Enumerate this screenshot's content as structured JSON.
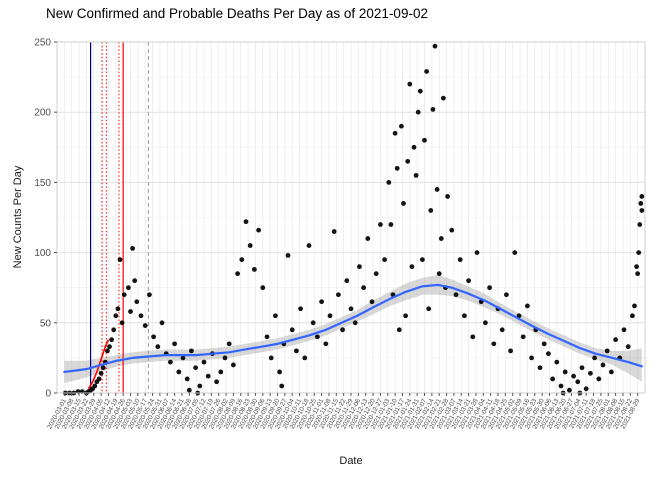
{
  "chart_data": {
    "type": "scatter",
    "title": "New Confirmed and Probable Deaths Per Day as of 2021-09-02",
    "xlabel": "Date",
    "ylabel": "New Counts Per Day",
    "ylim": [
      0,
      250
    ],
    "yticks": [
      0,
      50,
      100,
      150,
      200,
      250
    ],
    "x_domain": [
      "2020-02-23",
      "2021-09-05"
    ],
    "grid": true,
    "legend_position": "none",
    "colors": {
      "points": "#000000",
      "smooth_line": "#3366FF",
      "smooth_ribbon": "#a8a8a8",
      "early_fit": "#ff0000",
      "vline_navy": "#000080",
      "vline_red": "#ff0000",
      "vline_gray": "#9a9a9a",
      "gridline": "#e5e5e5"
    },
    "x_tick_labels": [
      "2020-03-01",
      "2020-03-08",
      "2020-03-15",
      "2020-03-22",
      "2020-03-29",
      "2020-04-05",
      "2020-04-12",
      "2020-04-19",
      "2020-04-26",
      "2020-05-03",
      "2020-05-10",
      "2020-05-17",
      "2020-05-24",
      "2020-05-31",
      "2020-06-07",
      "2020-06-14",
      "2020-06-21",
      "2020-06-28",
      "2020-07-05",
      "2020-07-12",
      "2020-07-19",
      "2020-07-26",
      "2020-08-02",
      "2020-08-09",
      "2020-08-16",
      "2020-08-23",
      "2020-08-30",
      "2020-09-06",
      "2020-09-13",
      "2020-09-20",
      "2020-09-27",
      "2020-10-04",
      "2020-10-11",
      "2020-10-18",
      "2020-10-25",
      "2020-11-01",
      "2020-11-08",
      "2020-11-15",
      "2020-11-22",
      "2020-11-29",
      "2020-12-06",
      "2020-12-13",
      "2020-12-20",
      "2020-12-27",
      "2021-01-03",
      "2021-01-10",
      "2021-01-17",
      "2021-01-24",
      "2021-01-31",
      "2021-02-07",
      "2021-02-14",
      "2021-02-21",
      "2021-02-28",
      "2021-03-07",
      "2021-03-14",
      "2021-03-21",
      "2021-03-28",
      "2021-04-04",
      "2021-04-11",
      "2021-04-18",
      "2021-04-25",
      "2021-05-02",
      "2021-05-09",
      "2021-05-16",
      "2021-05-23",
      "2021-05-30",
      "2021-06-06",
      "2021-06-13",
      "2021-06-20",
      "2021-06-27",
      "2021-07-04",
      "2021-07-11",
      "2021-07-18",
      "2021-07-25",
      "2021-08-01",
      "2021-08-08",
      "2021-08-15",
      "2021-08-22",
      "2021-08-29"
    ],
    "vlines": [
      {
        "x": "2020-03-26",
        "color": "#000080",
        "style": "solid"
      },
      {
        "x": "2020-04-06",
        "color": "#ff0000",
        "style": "dotted"
      },
      {
        "x": "2020-04-10",
        "color": "#ff0000",
        "style": "dotted"
      },
      {
        "x": "2020-04-22",
        "color": "#ff0000",
        "style": "dotted"
      },
      {
        "x": "2020-04-26",
        "color": "#ff0000",
        "style": "solid"
      },
      {
        "x": "2020-05-20",
        "color": "#9a9a9a",
        "style": "dashed"
      }
    ],
    "series": [
      {
        "name": "daily-deaths",
        "type": "scatter",
        "color": "#000000",
        "points": [
          [
            "2020-03-02",
            0
          ],
          [
            "2020-03-06",
            0
          ],
          [
            "2020-03-10",
            0
          ],
          [
            "2020-03-14",
            1
          ],
          [
            "2020-03-18",
            1
          ],
          [
            "2020-03-22",
            0
          ],
          [
            "2020-03-24",
            1
          ],
          [
            "2020-03-26",
            2
          ],
          [
            "2020-03-28",
            3
          ],
          [
            "2020-03-30",
            5
          ],
          [
            "2020-04-01",
            8
          ],
          [
            "2020-04-03",
            10
          ],
          [
            "2020-04-05",
            14
          ],
          [
            "2020-04-07",
            18
          ],
          [
            "2020-04-09",
            22
          ],
          [
            "2020-04-11",
            30
          ],
          [
            "2020-04-13",
            33
          ],
          [
            "2020-04-15",
            38
          ],
          [
            "2020-04-17",
            45
          ],
          [
            "2020-04-19",
            55
          ],
          [
            "2020-04-21",
            60
          ],
          [
            "2020-04-23",
            95
          ],
          [
            "2020-04-25",
            50
          ],
          [
            "2020-04-27",
            70
          ],
          [
            "2020-05-01",
            75
          ],
          [
            "2020-05-03",
            58
          ],
          [
            "2020-05-05",
            103
          ],
          [
            "2020-05-07",
            80
          ],
          [
            "2020-05-09",
            65
          ],
          [
            "2020-05-13",
            55
          ],
          [
            "2020-05-17",
            48
          ],
          [
            "2020-05-21",
            70
          ],
          [
            "2020-05-25",
            40
          ],
          [
            "2020-05-29",
            33
          ],
          [
            "2020-06-02",
            50
          ],
          [
            "2020-06-06",
            28
          ],
          [
            "2020-06-10",
            22
          ],
          [
            "2020-06-14",
            35
          ],
          [
            "2020-06-18",
            15
          ],
          [
            "2020-06-22",
            25
          ],
          [
            "2020-06-26",
            10
          ],
          [
            "2020-06-28",
            2
          ],
          [
            "2020-06-30",
            30
          ],
          [
            "2020-07-04",
            18
          ],
          [
            "2020-07-06",
            0
          ],
          [
            "2020-07-08",
            5
          ],
          [
            "2020-07-12",
            22
          ],
          [
            "2020-07-16",
            12
          ],
          [
            "2020-07-20",
            28
          ],
          [
            "2020-07-24",
            8
          ],
          [
            "2020-07-28",
            15
          ],
          [
            "2020-08-01",
            25
          ],
          [
            "2020-08-05",
            35
          ],
          [
            "2020-08-09",
            20
          ],
          [
            "2020-08-13",
            85
          ],
          [
            "2020-08-17",
            95
          ],
          [
            "2020-08-21",
            122
          ],
          [
            "2020-08-25",
            105
          ],
          [
            "2020-08-29",
            88
          ],
          [
            "2020-09-02",
            116
          ],
          [
            "2020-09-06",
            75
          ],
          [
            "2020-09-10",
            40
          ],
          [
            "2020-09-14",
            25
          ],
          [
            "2020-09-18",
            55
          ],
          [
            "2020-09-22",
            15
          ],
          [
            "2020-09-24",
            5
          ],
          [
            "2020-09-26",
            35
          ],
          [
            "2020-09-30",
            98
          ],
          [
            "2020-10-04",
            45
          ],
          [
            "2020-10-08",
            30
          ],
          [
            "2020-10-12",
            60
          ],
          [
            "2020-10-16",
            25
          ],
          [
            "2020-10-20",
            105
          ],
          [
            "2020-10-24",
            50
          ],
          [
            "2020-10-28",
            40
          ],
          [
            "2020-11-01",
            65
          ],
          [
            "2020-11-05",
            35
          ],
          [
            "2020-11-09",
            55
          ],
          [
            "2020-11-13",
            115
          ],
          [
            "2020-11-17",
            70
          ],
          [
            "2020-11-21",
            45
          ],
          [
            "2020-11-25",
            80
          ],
          [
            "2020-11-29",
            60
          ],
          [
            "2020-12-03",
            50
          ],
          [
            "2020-12-07",
            90
          ],
          [
            "2020-12-11",
            75
          ],
          [
            "2020-12-15",
            110
          ],
          [
            "2020-12-19",
            65
          ],
          [
            "2020-12-23",
            85
          ],
          [
            "2020-12-27",
            120
          ],
          [
            "2020-12-31",
            95
          ],
          [
            "2021-01-04",
            150
          ],
          [
            "2021-01-06",
            120
          ],
          [
            "2021-01-08",
            70
          ],
          [
            "2021-01-10",
            185
          ],
          [
            "2021-01-12",
            160
          ],
          [
            "2021-01-14",
            45
          ],
          [
            "2021-01-16",
            190
          ],
          [
            "2021-01-18",
            135
          ],
          [
            "2021-01-20",
            55
          ],
          [
            "2021-01-22",
            165
          ],
          [
            "2021-01-24",
            220
          ],
          [
            "2021-01-26",
            90
          ],
          [
            "2021-01-28",
            175
          ],
          [
            "2021-01-30",
            155
          ],
          [
            "2021-02-01",
            200
          ],
          [
            "2021-02-03",
            215
          ],
          [
            "2021-02-05",
            95
          ],
          [
            "2021-02-07",
            180
          ],
          [
            "2021-02-09",
            229
          ],
          [
            "2021-02-11",
            60
          ],
          [
            "2021-02-13",
            130
          ],
          [
            "2021-02-15",
            202
          ],
          [
            "2021-02-17",
            247
          ],
          [
            "2021-02-19",
            145
          ],
          [
            "2021-02-21",
            85
          ],
          [
            "2021-02-23",
            110
          ],
          [
            "2021-02-25",
            210
          ],
          [
            "2021-02-27",
            75
          ],
          [
            "2021-03-01",
            140
          ],
          [
            "2021-03-05",
            116
          ],
          [
            "2021-03-09",
            70
          ],
          [
            "2021-03-13",
            95
          ],
          [
            "2021-03-17",
            55
          ],
          [
            "2021-03-21",
            80
          ],
          [
            "2021-03-25",
            40
          ],
          [
            "2021-03-29",
            100
          ],
          [
            "2021-04-02",
            65
          ],
          [
            "2021-04-06",
            50
          ],
          [
            "2021-04-10",
            75
          ],
          [
            "2021-04-14",
            35
          ],
          [
            "2021-04-18",
            60
          ],
          [
            "2021-04-22",
            45
          ],
          [
            "2021-04-26",
            70
          ],
          [
            "2021-04-30",
            30
          ],
          [
            "2021-05-04",
            100
          ],
          [
            "2021-05-08",
            55
          ],
          [
            "2021-05-12",
            40
          ],
          [
            "2021-05-16",
            62
          ],
          [
            "2021-05-20",
            25
          ],
          [
            "2021-05-24",
            45
          ],
          [
            "2021-05-28",
            18
          ],
          [
            "2021-06-01",
            35
          ],
          [
            "2021-06-05",
            28
          ],
          [
            "2021-06-09",
            10
          ],
          [
            "2021-06-13",
            22
          ],
          [
            "2021-06-17",
            5
          ],
          [
            "2021-06-19",
            0
          ],
          [
            "2021-06-21",
            15
          ],
          [
            "2021-06-25",
            2
          ],
          [
            "2021-06-29",
            12
          ],
          [
            "2021-07-03",
            8
          ],
          [
            "2021-07-05",
            0
          ],
          [
            "2021-07-07",
            18
          ],
          [
            "2021-07-11",
            3
          ],
          [
            "2021-07-15",
            14
          ],
          [
            "2021-07-19",
            25
          ],
          [
            "2021-07-23",
            10
          ],
          [
            "2021-07-27",
            20
          ],
          [
            "2021-07-31",
            30
          ],
          [
            "2021-08-04",
            15
          ],
          [
            "2021-08-08",
            38
          ],
          [
            "2021-08-12",
            25
          ],
          [
            "2021-08-16",
            45
          ],
          [
            "2021-08-20",
            33
          ],
          [
            "2021-08-24",
            55
          ],
          [
            "2021-08-26",
            62
          ],
          [
            "2021-08-28",
            90
          ],
          [
            "2021-08-29",
            85
          ],
          [
            "2021-08-30",
            100
          ],
          [
            "2021-08-31",
            120
          ],
          [
            "2021-09-01",
            135
          ],
          [
            "2021-09-02",
            130
          ],
          [
            "2021-09-02",
            140
          ]
        ]
      },
      {
        "name": "loess-smooth",
        "type": "line",
        "color": "#3366FF",
        "ribbon_color": "#a8a8a8",
        "points_format": [
          "date",
          "value",
          "ci_low",
          "ci_high"
        ],
        "points": [
          [
            "2020-03-01",
            15,
            7,
            23
          ],
          [
            "2020-03-22",
            17,
            11,
            23
          ],
          [
            "2020-04-05",
            20,
            15,
            25
          ],
          [
            "2020-04-20",
            23,
            19,
            27
          ],
          [
            "2020-05-05",
            25,
            21,
            29
          ],
          [
            "2020-05-20",
            26,
            22,
            30
          ],
          [
            "2020-06-05",
            27,
            23,
            31
          ],
          [
            "2020-06-20",
            27,
            23,
            31
          ],
          [
            "2020-07-05",
            27,
            23,
            31
          ],
          [
            "2020-07-20",
            28,
            24,
            32
          ],
          [
            "2020-08-05",
            29,
            25,
            33
          ],
          [
            "2020-08-20",
            31,
            27,
            35
          ],
          [
            "2020-09-05",
            33,
            29,
            37
          ],
          [
            "2020-09-20",
            35,
            31,
            39
          ],
          [
            "2020-10-05",
            38,
            34,
            42
          ],
          [
            "2020-10-20",
            41,
            37,
            45
          ],
          [
            "2020-11-05",
            45,
            41,
            49
          ],
          [
            "2020-11-20",
            50,
            46,
            54
          ],
          [
            "2020-12-05",
            55,
            51,
            59
          ],
          [
            "2020-12-20",
            61,
            56,
            66
          ],
          [
            "2021-01-05",
            67,
            62,
            72
          ],
          [
            "2021-01-20",
            72,
            66,
            78
          ],
          [
            "2021-02-05",
            76,
            70,
            82
          ],
          [
            "2021-02-20",
            77,
            70,
            84
          ],
          [
            "2021-03-05",
            75,
            69,
            81
          ],
          [
            "2021-03-20",
            71,
            66,
            76
          ],
          [
            "2021-04-05",
            66,
            61,
            71
          ],
          [
            "2021-04-20",
            60,
            56,
            64
          ],
          [
            "2021-05-05",
            54,
            50,
            58
          ],
          [
            "2021-05-20",
            48,
            44,
            52
          ],
          [
            "2021-06-05",
            42,
            38,
            46
          ],
          [
            "2021-06-20",
            37,
            33,
            41
          ],
          [
            "2021-07-05",
            32,
            28,
            36
          ],
          [
            "2021-07-20",
            28,
            24,
            32
          ],
          [
            "2021-08-05",
            25,
            20,
            30
          ],
          [
            "2021-08-20",
            22,
            14,
            30
          ],
          [
            "2021-09-02",
            19,
            8,
            32
          ]
        ]
      },
      {
        "name": "early-exponential-fit",
        "type": "line",
        "color": "#ff0000",
        "points": [
          [
            "2020-03-24",
            3
          ],
          [
            "2020-03-28",
            8
          ],
          [
            "2020-04-01",
            15
          ],
          [
            "2020-04-05",
            24
          ],
          [
            "2020-04-09",
            33
          ],
          [
            "2020-04-12",
            38
          ]
        ]
      }
    ]
  }
}
